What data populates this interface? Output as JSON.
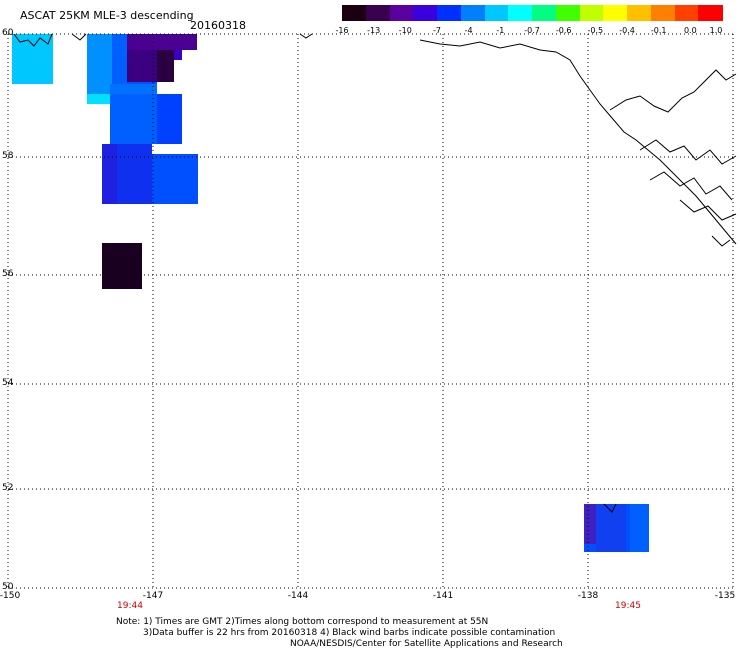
{
  "header": {
    "title": "ASCAT 25KM MLE-3 descending",
    "date": "20160318"
  },
  "colorbar": {
    "ticks": [
      "-16",
      "-13",
      "-10",
      "-7",
      "-4",
      "-1",
      "-0.7",
      "-0.6",
      "-0.5",
      "-0.4",
      "-0.1",
      "0.0",
      "1.0"
    ],
    "colors": [
      "#1a0010",
      "#3a0050",
      "#5a00a0",
      "#3a00e0",
      "#0030ff",
      "#0080ff",
      "#00c8ff",
      "#00ffff",
      "#00ff80",
      "#40ff00",
      "#c0ff00",
      "#ffff00",
      "#ffc000",
      "#ff8000",
      "#ff4000",
      "#ff0000"
    ]
  },
  "axes": {
    "lat_labels": [
      "60",
      "58",
      "56",
      "54",
      "52",
      "50"
    ],
    "lon_labels": [
      "-150",
      "-147",
      "-144",
      "-141",
      "-138",
      "-135"
    ],
    "time_labels": [
      "19:44",
      "19:45"
    ]
  },
  "notes": {
    "line1": "Note: 1) Times are GMT 2)Times along bottom correspond to measurement at 55N",
    "line2": "3)Data buffer is 22 hrs from 20160318 4) Black wind barbs indicate possible contamination",
    "line3": "NOAA/NESDIS/Center for Satellite Applications and Research"
  },
  "colors": {
    "grid": "#000000",
    "time_label": "#cc0000"
  }
}
